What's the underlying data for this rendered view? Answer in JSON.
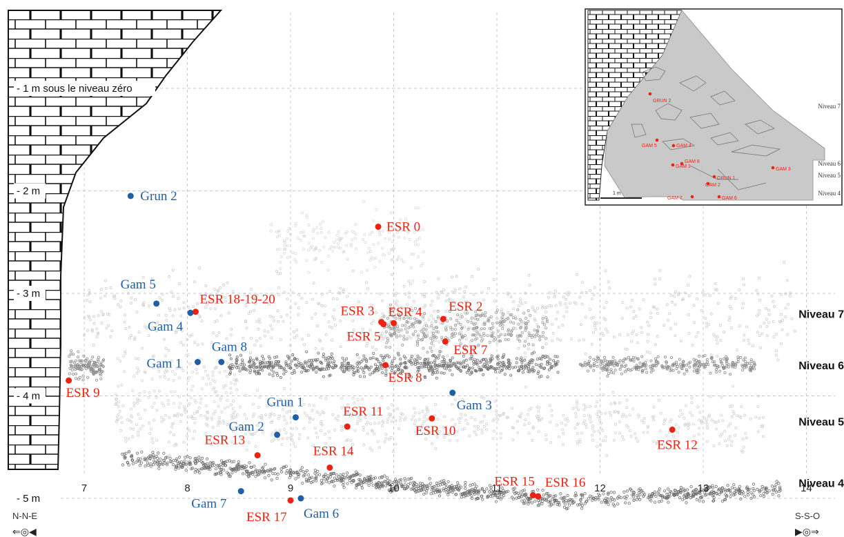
{
  "chart_data": {
    "type": "scatter",
    "x_ticks": [
      "7",
      "8",
      "9",
      "10",
      "11",
      "12",
      "13",
      "14"
    ],
    "xlim": [
      6.7,
      14.3
    ],
    "ylim": [
      -5.3,
      0
    ],
    "depth_labels": [
      {
        "y": -1,
        "text": "- 1 m sous le niveau zéro"
      },
      {
        "y": -2,
        "text": "- 2 m"
      },
      {
        "y": -3,
        "text": "- 3 m"
      },
      {
        "y": -4,
        "text": "- 4 m"
      },
      {
        "y": -5,
        "text": "- 5 m"
      }
    ],
    "orientation": {
      "left": "N-N-E",
      "right": "S-S-O"
    },
    "levels": [
      {
        "name": "Niveau 7",
        "y": -3.2
      },
      {
        "name": "Niveau 6",
        "y": -3.7
      },
      {
        "name": "Niveau 5",
        "y": -4.25
      },
      {
        "name": "Niveau 4",
        "y": -4.85
      }
    ],
    "series": [
      {
        "name": "ESR",
        "color": "#ee2211",
        "points": [
          {
            "label": "ESR 0",
            "x": 9.85,
            "y": -2.35
          },
          {
            "label": "ESR 18-19-20",
            "x": 8.08,
            "y": -3.18
          },
          {
            "label": "ESR 3",
            "x": 9.88,
            "y": -3.28
          },
          {
            "label": "ESR 4",
            "x": 10.0,
            "y": -3.29
          },
          {
            "label": "ESR 2",
            "x": 10.48,
            "y": -3.25
          },
          {
            "label": "ESR 5",
            "x": 9.9,
            "y": -3.3
          },
          {
            "label": "ESR 7",
            "x": 10.5,
            "y": -3.47
          },
          {
            "label": "ESR 8",
            "x": 9.92,
            "y": -3.7
          },
          {
            "label": "ESR 9",
            "x": 6.85,
            "y": -3.85
          },
          {
            "label": "ESR 11",
            "x": 9.55,
            "y": -4.3
          },
          {
            "label": "ESR 10",
            "x": 10.37,
            "y": -4.22
          },
          {
            "label": "ESR 12",
            "x": 12.7,
            "y": -4.33
          },
          {
            "label": "ESR 13",
            "x": 8.68,
            "y": -4.58
          },
          {
            "label": "ESR 14",
            "x": 9.38,
            "y": -4.7
          },
          {
            "label": "ESR 15",
            "x": 11.35,
            "y": -4.97
          },
          {
            "label": "ESR 16",
            "x": 11.4,
            "y": -4.98
          },
          {
            "label": "ESR 17",
            "x": 9.0,
            "y": -5.02
          }
        ]
      },
      {
        "name": "Gam",
        "color": "#1f5fa5",
        "points": [
          {
            "label": "Grun 2",
            "x": 7.45,
            "y": -2.05
          },
          {
            "label": "Gam 5",
            "x": 7.7,
            "y": -3.1
          },
          {
            "label": "Gam 4",
            "x": 8.03,
            "y": -3.19
          },
          {
            "label": "Gam 1",
            "x": 8.1,
            "y": -3.67
          },
          {
            "label": "Gam 8",
            "x": 8.33,
            "y": -3.67
          },
          {
            "label": "Gam 3",
            "x": 10.57,
            "y": -3.97
          },
          {
            "label": "Grun 1",
            "x": 9.05,
            "y": -4.21
          },
          {
            "label": "Gam 2",
            "x": 8.87,
            "y": -4.38
          },
          {
            "label": "Gam 7",
            "x": 8.52,
            "y": -4.93
          },
          {
            "label": "Gam 6",
            "x": 9.1,
            "y": -5.0
          }
        ]
      }
    ],
    "inset": {
      "scale_label": "1 m",
      "levels": [
        "Niveau 7",
        "Niveau 6",
        "Niveau 5",
        "Niveau 4"
      ],
      "labels": [
        "GRUN 2",
        "GAM 4",
        "GAM 5",
        "GAM 1",
        "GAM 8",
        "GRUN 1",
        "GAM 3",
        "GAM 2",
        "GAM 7",
        "GAM 6"
      ]
    }
  }
}
